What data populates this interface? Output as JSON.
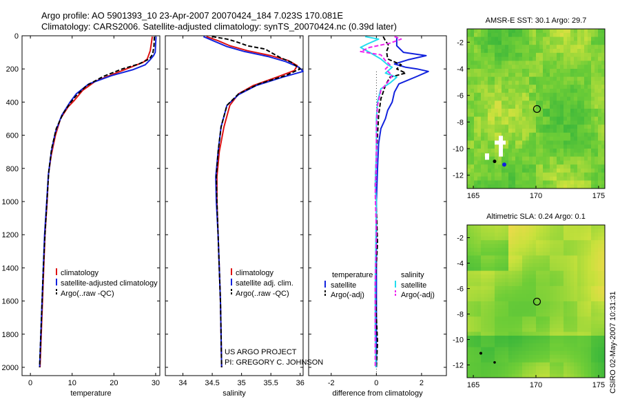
{
  "header": {
    "line1": "Argo profile: AO 5901393_10 23-Apr-2007 20070424_184 7.023S 170.081E",
    "line2": "Climatology: CARS2006. Satellite-adjusted climatology: synTS_20070424.nc (0.39d later)"
  },
  "colors": {
    "climatology": "#dd1111",
    "satellite": "#1122dd",
    "argo": "#000000",
    "satellite_sal": "#22ddee",
    "argo_sal": "#ee22ee"
  },
  "depth_axis": {
    "min": 0,
    "max": 2050,
    "ticks": [
      0,
      200,
      400,
      600,
      800,
      1000,
      1200,
      1400,
      1600,
      1800,
      2000
    ]
  },
  "chart_data": [
    {
      "type": "line",
      "id": "temperature",
      "xlabel": "temperature",
      "xlim": [
        -2,
        31
      ],
      "xticks": [
        0,
        10,
        20,
        30
      ],
      "legend": [
        "climatology",
        "satellite-adjusted climatology",
        "Argo(..raw -QC)"
      ],
      "series": [
        {
          "name": "climatology",
          "points": [
            [
              29.2,
              5
            ],
            [
              29.0,
              40
            ],
            [
              28.7,
              90
            ],
            [
              28.0,
              140
            ],
            [
              27.0,
              160
            ],
            [
              25.0,
              180
            ],
            [
              20.5,
              225
            ],
            [
              15.5,
              275
            ],
            [
              12.5,
              330
            ],
            [
              10.5,
              390
            ],
            [
              9.0,
              430
            ],
            [
              7.2,
              500
            ],
            [
              6.0,
              600
            ],
            [
              5.0,
              720
            ],
            [
              4.3,
              840
            ],
            [
              4.0,
              1000
            ],
            [
              3.5,
              1200
            ],
            [
              3.2,
              1400
            ],
            [
              2.9,
              1600
            ],
            [
              2.6,
              1800
            ],
            [
              2.3,
              2000
            ]
          ]
        },
        {
          "name": "satellite",
          "points": [
            [
              30.1,
              5
            ],
            [
              30.0,
              50
            ],
            [
              29.9,
              100
            ],
            [
              29.5,
              120
            ],
            [
              28.5,
              150
            ],
            [
              27.5,
              175
            ],
            [
              24.5,
              205
            ],
            [
              19.5,
              240
            ],
            [
              14.0,
              290
            ],
            [
              11.0,
              350
            ],
            [
              9.5,
              400
            ],
            [
              7.5,
              480
            ],
            [
              6.0,
              580
            ],
            [
              5.0,
              700
            ],
            [
              4.3,
              840
            ],
            [
              3.9,
              1000
            ],
            [
              3.4,
              1200
            ],
            [
              3.1,
              1400
            ],
            [
              2.8,
              1600
            ],
            [
              2.5,
              1800
            ],
            [
              2.2,
              2000
            ]
          ]
        },
        {
          "name": "Argo",
          "points": [
            [
              29.7,
              5
            ],
            [
              29.6,
              60
            ],
            [
              29.3,
              110
            ],
            [
              28.5,
              140
            ],
            [
              26.0,
              170
            ],
            [
              22.0,
              200
            ],
            [
              17.5,
              245
            ],
            [
              13.5,
              300
            ],
            [
              11.0,
              360
            ],
            [
              9.7,
              400
            ],
            [
              7.8,
              470
            ],
            [
              6.2,
              560
            ],
            [
              5.1,
              680
            ],
            [
              4.4,
              820
            ],
            [
              4.0,
              980
            ],
            [
              3.5,
              1200
            ],
            [
              3.1,
              1400
            ],
            [
              2.8,
              1600
            ],
            [
              2.5,
              1800
            ],
            [
              2.2,
              2000
            ]
          ]
        }
      ]
    },
    {
      "type": "line",
      "id": "salinity",
      "xlabel": "salinity",
      "xlim": [
        33.7,
        36.05
      ],
      "xticks": [
        34,
        34.5,
        35,
        35.5,
        36
      ],
      "legend": [
        "climatology",
        "satellite adj. clim.",
        "Argo(..raw -QC)"
      ],
      "series": [
        {
          "name": "climatology",
          "points": [
            [
              34.4,
              5
            ],
            [
              34.6,
              30
            ],
            [
              34.8,
              60
            ],
            [
              35.1,
              90
            ],
            [
              35.5,
              120
            ],
            [
              35.8,
              150
            ],
            [
              35.95,
              180
            ],
            [
              35.9,
              210
            ],
            [
              35.6,
              250
            ],
            [
              35.2,
              300
            ],
            [
              34.95,
              350
            ],
            [
              34.8,
              420
            ],
            [
              34.7,
              550
            ],
            [
              34.62,
              700
            ],
            [
              34.58,
              850
            ],
            [
              34.58,
              1000
            ],
            [
              34.6,
              1200
            ],
            [
              34.62,
              1400
            ],
            [
              34.64,
              1600
            ],
            [
              34.65,
              1800
            ],
            [
              34.66,
              2000
            ]
          ]
        },
        {
          "name": "satellite",
          "points": [
            [
              34.35,
              5
            ],
            [
              34.55,
              35
            ],
            [
              34.75,
              65
            ],
            [
              35.05,
              95
            ],
            [
              35.45,
              125
            ],
            [
              35.75,
              155
            ],
            [
              35.98,
              190
            ],
            [
              36.05,
              215
            ],
            [
              35.7,
              250
            ],
            [
              35.25,
              300
            ],
            [
              34.95,
              355
            ],
            [
              34.75,
              420
            ],
            [
              34.65,
              550
            ],
            [
              34.6,
              700
            ],
            [
              34.56,
              850
            ],
            [
              34.57,
              1000
            ],
            [
              34.6,
              1200
            ],
            [
              34.62,
              1400
            ],
            [
              34.64,
              1600
            ],
            [
              34.65,
              1800
            ],
            [
              34.66,
              2000
            ]
          ]
        },
        {
          "name": "Argo",
          "points": [
            [
              34.5,
              5
            ],
            [
              34.75,
              20
            ],
            [
              34.9,
              35
            ],
            [
              35.1,
              60
            ],
            [
              35.25,
              70
            ],
            [
              35.4,
              80
            ],
            [
              35.5,
              100
            ],
            [
              35.65,
              130
            ],
            [
              35.85,
              160
            ],
            [
              36.0,
              200
            ],
            [
              35.75,
              240
            ],
            [
              35.3,
              290
            ],
            [
              34.95,
              350
            ],
            [
              34.75,
              420
            ],
            [
              34.65,
              550
            ],
            [
              34.6,
              700
            ],
            [
              34.57,
              850
            ],
            [
              34.58,
              1000
            ],
            [
              34.6,
              1200
            ],
            [
              34.62,
              1400
            ],
            [
              34.64,
              1600
            ],
            [
              34.65,
              1800
            ],
            [
              34.66,
              2000
            ]
          ]
        }
      ]
    },
    {
      "type": "line",
      "id": "difference",
      "xlabel": "difference from climatology",
      "xlim": [
        -3,
        3.1
      ],
      "xticks": [
        -2,
        0,
        2
      ],
      "legend_titles": [
        "temperature",
        "salinity"
      ],
      "legend": [
        "satellite",
        "Argo(-adj)",
        "satellite",
        "Argo(-adj)"
      ],
      "series": [
        {
          "name": "temperature satellite",
          "points": [
            [
              0.9,
              5
            ],
            [
              0.9,
              60
            ],
            [
              1.2,
              100
            ],
            [
              2.2,
              120
            ],
            [
              1.4,
              145
            ],
            [
              0.8,
              170
            ],
            [
              1.3,
              190
            ],
            [
              1.8,
              200
            ],
            [
              2.3,
              215
            ],
            [
              1.8,
              245
            ],
            [
              1.0,
              290
            ],
            [
              0.8,
              340
            ],
            [
              0.7,
              400
            ],
            [
              0.5,
              450
            ],
            [
              0.4,
              500
            ],
            [
              0.2,
              560
            ],
            [
              0.1,
              650
            ],
            [
              0.05,
              800
            ],
            [
              0,
              1000
            ],
            [
              0,
              1500
            ],
            [
              0,
              2000
            ]
          ]
        },
        {
          "name": "temperature Argo",
          "points": [
            [
              0.3,
              5
            ],
            [
              0.4,
              30
            ],
            [
              0.55,
              60
            ],
            [
              0.45,
              95
            ],
            [
              0.5,
              140
            ],
            [
              1.1,
              175
            ],
            [
              0.9,
              200
            ],
            [
              1.3,
              225
            ],
            [
              0.6,
              250
            ],
            [
              0.4,
              300
            ],
            [
              0.2,
              380
            ],
            [
              0.1,
              480
            ],
            [
              0.05,
              600
            ],
            [
              0,
              700
            ],
            [
              -0.05,
              900
            ],
            [
              0,
              1050
            ],
            [
              0.05,
              1250
            ],
            [
              -0.05,
              1500
            ],
            [
              0,
              1700
            ],
            [
              0.05,
              1850
            ],
            [
              0,
              2000
            ]
          ]
        },
        {
          "name": "salinity satellite",
          "points": [
            [
              -0.5,
              5
            ],
            [
              0.1,
              20
            ],
            [
              -0.4,
              50
            ],
            [
              -0.7,
              70
            ],
            [
              -0.3,
              100
            ],
            [
              0.2,
              140
            ],
            [
              0.5,
              175
            ],
            [
              0.7,
              190
            ],
            [
              0.4,
              225
            ],
            [
              0.9,
              250
            ],
            [
              0.6,
              285
            ],
            [
              0.2,
              320
            ],
            [
              0.05,
              400
            ],
            [
              0,
              500
            ],
            [
              0,
              700
            ],
            [
              -0.05,
              900
            ],
            [
              0,
              1000
            ],
            [
              -0.02,
              1200
            ],
            [
              -0.05,
              1500
            ],
            [
              -0.05,
              1800
            ],
            [
              -0.02,
              2000
            ]
          ]
        },
        {
          "name": "salinity Argo",
          "points": [
            [
              0.8,
              5
            ],
            [
              1.1,
              20
            ],
            [
              0.6,
              45
            ],
            [
              -0.3,
              70
            ],
            [
              -0.7,
              95
            ],
            [
              0.2,
              115
            ],
            [
              0.4,
              150
            ],
            [
              0.6,
              175
            ],
            [
              0.4,
              200
            ],
            [
              0.7,
              240
            ],
            [
              0.5,
              280
            ],
            [
              0.2,
              330
            ],
            [
              0.05,
              420
            ],
            [
              0,
              550
            ],
            [
              0,
              750
            ],
            [
              -0.05,
              950
            ],
            [
              0,
              1200
            ],
            [
              -0.05,
              1500
            ],
            [
              -0.05,
              1800
            ],
            [
              -0.05,
              2000
            ]
          ]
        }
      ]
    },
    {
      "type": "heatmap",
      "id": "sst-map",
      "title": "AMSR-E SST: 30.1 Argo: 29.7",
      "xticks": [
        165,
        170,
        175
      ],
      "yticks": [
        -2,
        -4,
        -6,
        -8,
        -10,
        -12
      ],
      "xlim": [
        164.5,
        175.5
      ],
      "ylim": [
        -13,
        -1
      ],
      "marker": {
        "lon": 170.081,
        "lat": -7.023
      }
    },
    {
      "type": "heatmap",
      "id": "sla-map",
      "title": "Altimetric SLA: 0.24 Argo: 0.1",
      "xticks": [
        165,
        170,
        175
      ],
      "yticks": [
        -2,
        -4,
        -6,
        -8,
        -10,
        -12
      ],
      "xlim": [
        164.5,
        175.5
      ],
      "ylim": [
        -13,
        -1
      ],
      "marker": {
        "lon": 170.081,
        "lat": -7.023
      }
    }
  ],
  "project_note": {
    "line1": "US ARGO PROJECT",
    "line2": "PI: GREGORY C. JOHNSON"
  },
  "stamp": "CSIRO 02-May-2007 10:31:31"
}
